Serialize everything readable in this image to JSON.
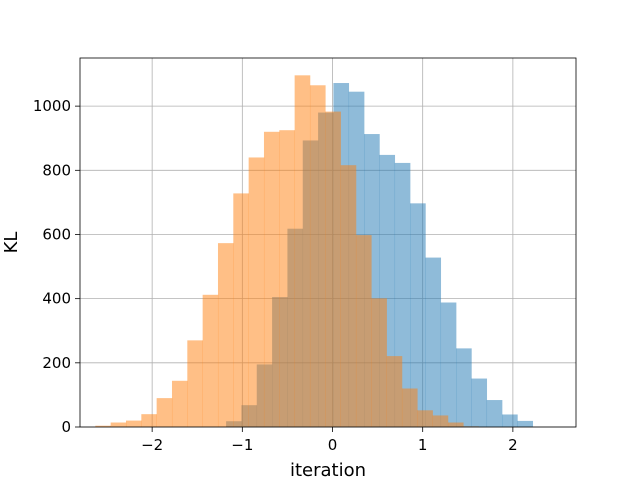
{
  "chart_data": {
    "type": "bar",
    "subtype": "overlaid-histogram",
    "title": "",
    "xlabel": "iteration",
    "ylabel": "KL",
    "xlim": [
      -2.8,
      2.7
    ],
    "ylim": [
      0,
      1150
    ],
    "xticks": [
      -2,
      -1,
      0,
      1,
      2
    ],
    "xtick_labels": [
      "−2",
      "−1",
      "0",
      "1",
      "2"
    ],
    "yticks": [
      0,
      200,
      400,
      600,
      800,
      1000
    ],
    "ytick_labels": [
      "0",
      "200",
      "400",
      "600",
      "800",
      "1000"
    ],
    "grid": true,
    "legend": "none",
    "series": [
      {
        "color": "#1f77b4",
        "opacity": 0.5,
        "bin_start": -1.18,
        "bin_width": 0.17,
        "values": [
          18,
          68,
          195,
          405,
          618,
          893,
          980,
          1072,
          1045,
          913,
          848,
          823,
          697,
          528,
          388,
          245,
          151,
          84,
          39,
          19
        ]
      },
      {
        "color": "#ff7f0e",
        "opacity": 0.5,
        "bin_start": -2.63,
        "bin_width": 0.17,
        "values": [
          4,
          14,
          20,
          40,
          90,
          144,
          270,
          412,
          573,
          728,
          840,
          920,
          925,
          1096,
          1065,
          983,
          816,
          598,
          401,
          221,
          120,
          52,
          36,
          14,
          2
        ]
      }
    ]
  }
}
